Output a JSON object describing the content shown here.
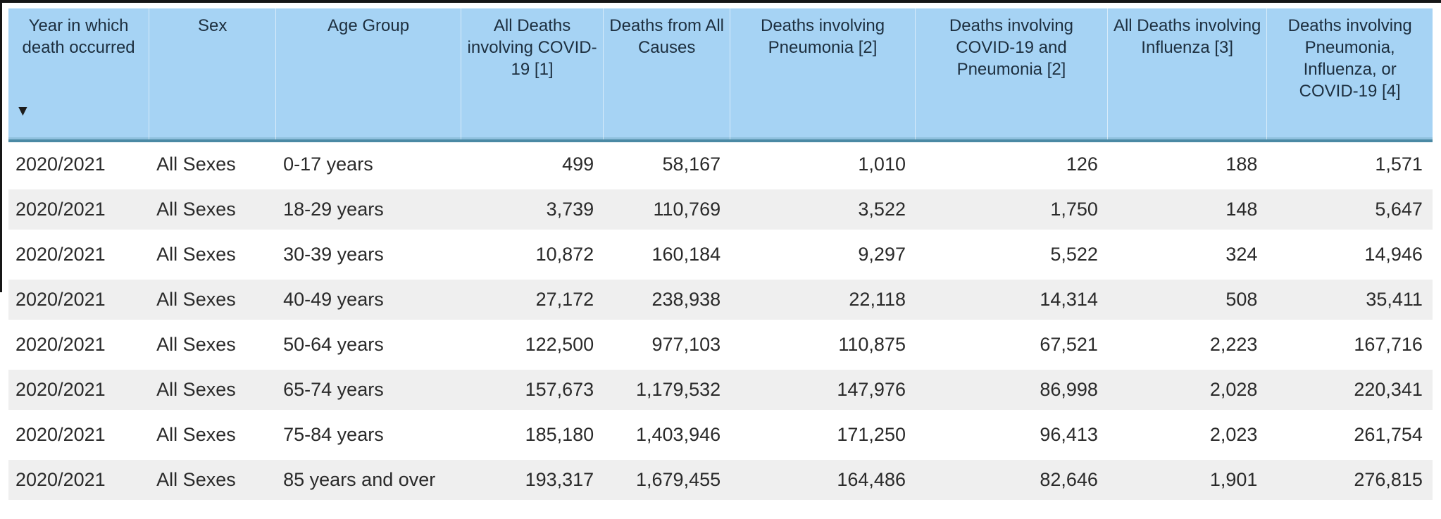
{
  "table": {
    "sort_icon": "▼",
    "sorted_column": "Year in which death occurred",
    "sort_direction": "descending",
    "columns": [
      {
        "key": "year",
        "label": "Year in which death occurred",
        "align": "left"
      },
      {
        "key": "sex",
        "label": "Sex",
        "align": "left"
      },
      {
        "key": "age-group",
        "label": "Age Group",
        "align": "left"
      },
      {
        "key": "covid-deaths",
        "label": "All Deaths involving COVID-19 [1]",
        "align": "right"
      },
      {
        "key": "all-causes",
        "label": "Deaths from All Causes",
        "align": "right"
      },
      {
        "key": "pneumonia",
        "label": "Deaths involving Pneumonia [2]",
        "align": "right"
      },
      {
        "key": "covid-pneumonia",
        "label": "Deaths involving COVID-19 and Pneumonia [2]",
        "align": "right"
      },
      {
        "key": "influenza",
        "label": "All Deaths involving Influenza [3]",
        "align": "right"
      },
      {
        "key": "pic",
        "label": "Deaths involving Pneumonia, Influenza, or COVID-19 [4]",
        "align": "right"
      }
    ],
    "rows": [
      [
        "2020/2021",
        "All Sexes",
        "0-17 years",
        "499",
        "58,167",
        "1,010",
        "126",
        "188",
        "1,571"
      ],
      [
        "2020/2021",
        "All Sexes",
        "18-29 years",
        "3,739",
        "110,769",
        "3,522",
        "1,750",
        "148",
        "5,647"
      ],
      [
        "2020/2021",
        "All Sexes",
        "30-39 years",
        "10,872",
        "160,184",
        "9,297",
        "5,522",
        "324",
        "14,946"
      ],
      [
        "2020/2021",
        "All Sexes",
        "40-49 years",
        "27,172",
        "238,938",
        "22,118",
        "14,314",
        "508",
        "35,411"
      ],
      [
        "2020/2021",
        "All Sexes",
        "50-64 years",
        "122,500",
        "977,103",
        "110,875",
        "67,521",
        "2,223",
        "167,716"
      ],
      [
        "2020/2021",
        "All Sexes",
        "65-74 years",
        "157,673",
        "1,179,532",
        "147,976",
        "86,998",
        "2,028",
        "220,341"
      ],
      [
        "2020/2021",
        "All Sexes",
        "75-84 years",
        "185,180",
        "1,403,946",
        "171,250",
        "96,413",
        "2,023",
        "261,754"
      ],
      [
        "2020/2021",
        "All Sexes",
        "85 years and over",
        "193,317",
        "1,679,455",
        "164,486",
        "82,646",
        "1,901",
        "276,815"
      ]
    ]
  },
  "colors": {
    "header_bg": "#A6D3F4",
    "header_underline": "#4A89A4",
    "header_text": "#1D2F3F",
    "row_alt_bg": "#EFEFEF",
    "row_text": "#2A2A2A",
    "frame_edge": "#161616"
  }
}
